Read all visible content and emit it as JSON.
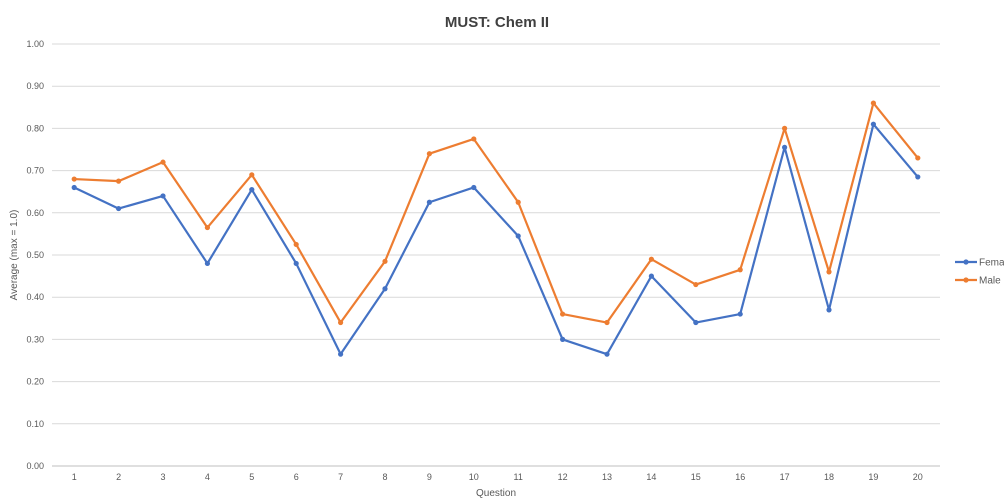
{
  "chart_data": {
    "type": "line",
    "title": "MUST: Chem II",
    "xlabel": "Question",
    "ylabel": "Average (max = 1.0)",
    "categories": [
      "1",
      "2",
      "3",
      "4",
      "5",
      "6",
      "7",
      "8",
      "9",
      "10",
      "11",
      "12",
      "13",
      "14",
      "15",
      "16",
      "17",
      "18",
      "19",
      "20"
    ],
    "ylim": [
      0,
      1.0
    ],
    "yticks": [
      "0.00",
      "0.10",
      "0.20",
      "0.30",
      "0.40",
      "0.50",
      "0.60",
      "0.70",
      "0.80",
      "0.90",
      "1.00"
    ],
    "grid": true,
    "legend_position": "right",
    "series": [
      {
        "name": "Femal",
        "color": "#4472c4",
        "values": [
          0.66,
          0.61,
          0.64,
          0.48,
          0.655,
          0.48,
          0.265,
          0.42,
          0.625,
          0.66,
          0.545,
          0.3,
          0.265,
          0.45,
          0.34,
          0.36,
          0.755,
          0.37,
          0.81,
          0.685
        ]
      },
      {
        "name": "Male",
        "color": "#ed7d31",
        "values": [
          0.68,
          0.675,
          0.72,
          0.565,
          0.69,
          0.525,
          0.34,
          0.485,
          0.74,
          0.775,
          0.625,
          0.36,
          0.34,
          0.49,
          0.43,
          0.465,
          0.8,
          0.46,
          0.86,
          0.73
        ]
      }
    ]
  }
}
